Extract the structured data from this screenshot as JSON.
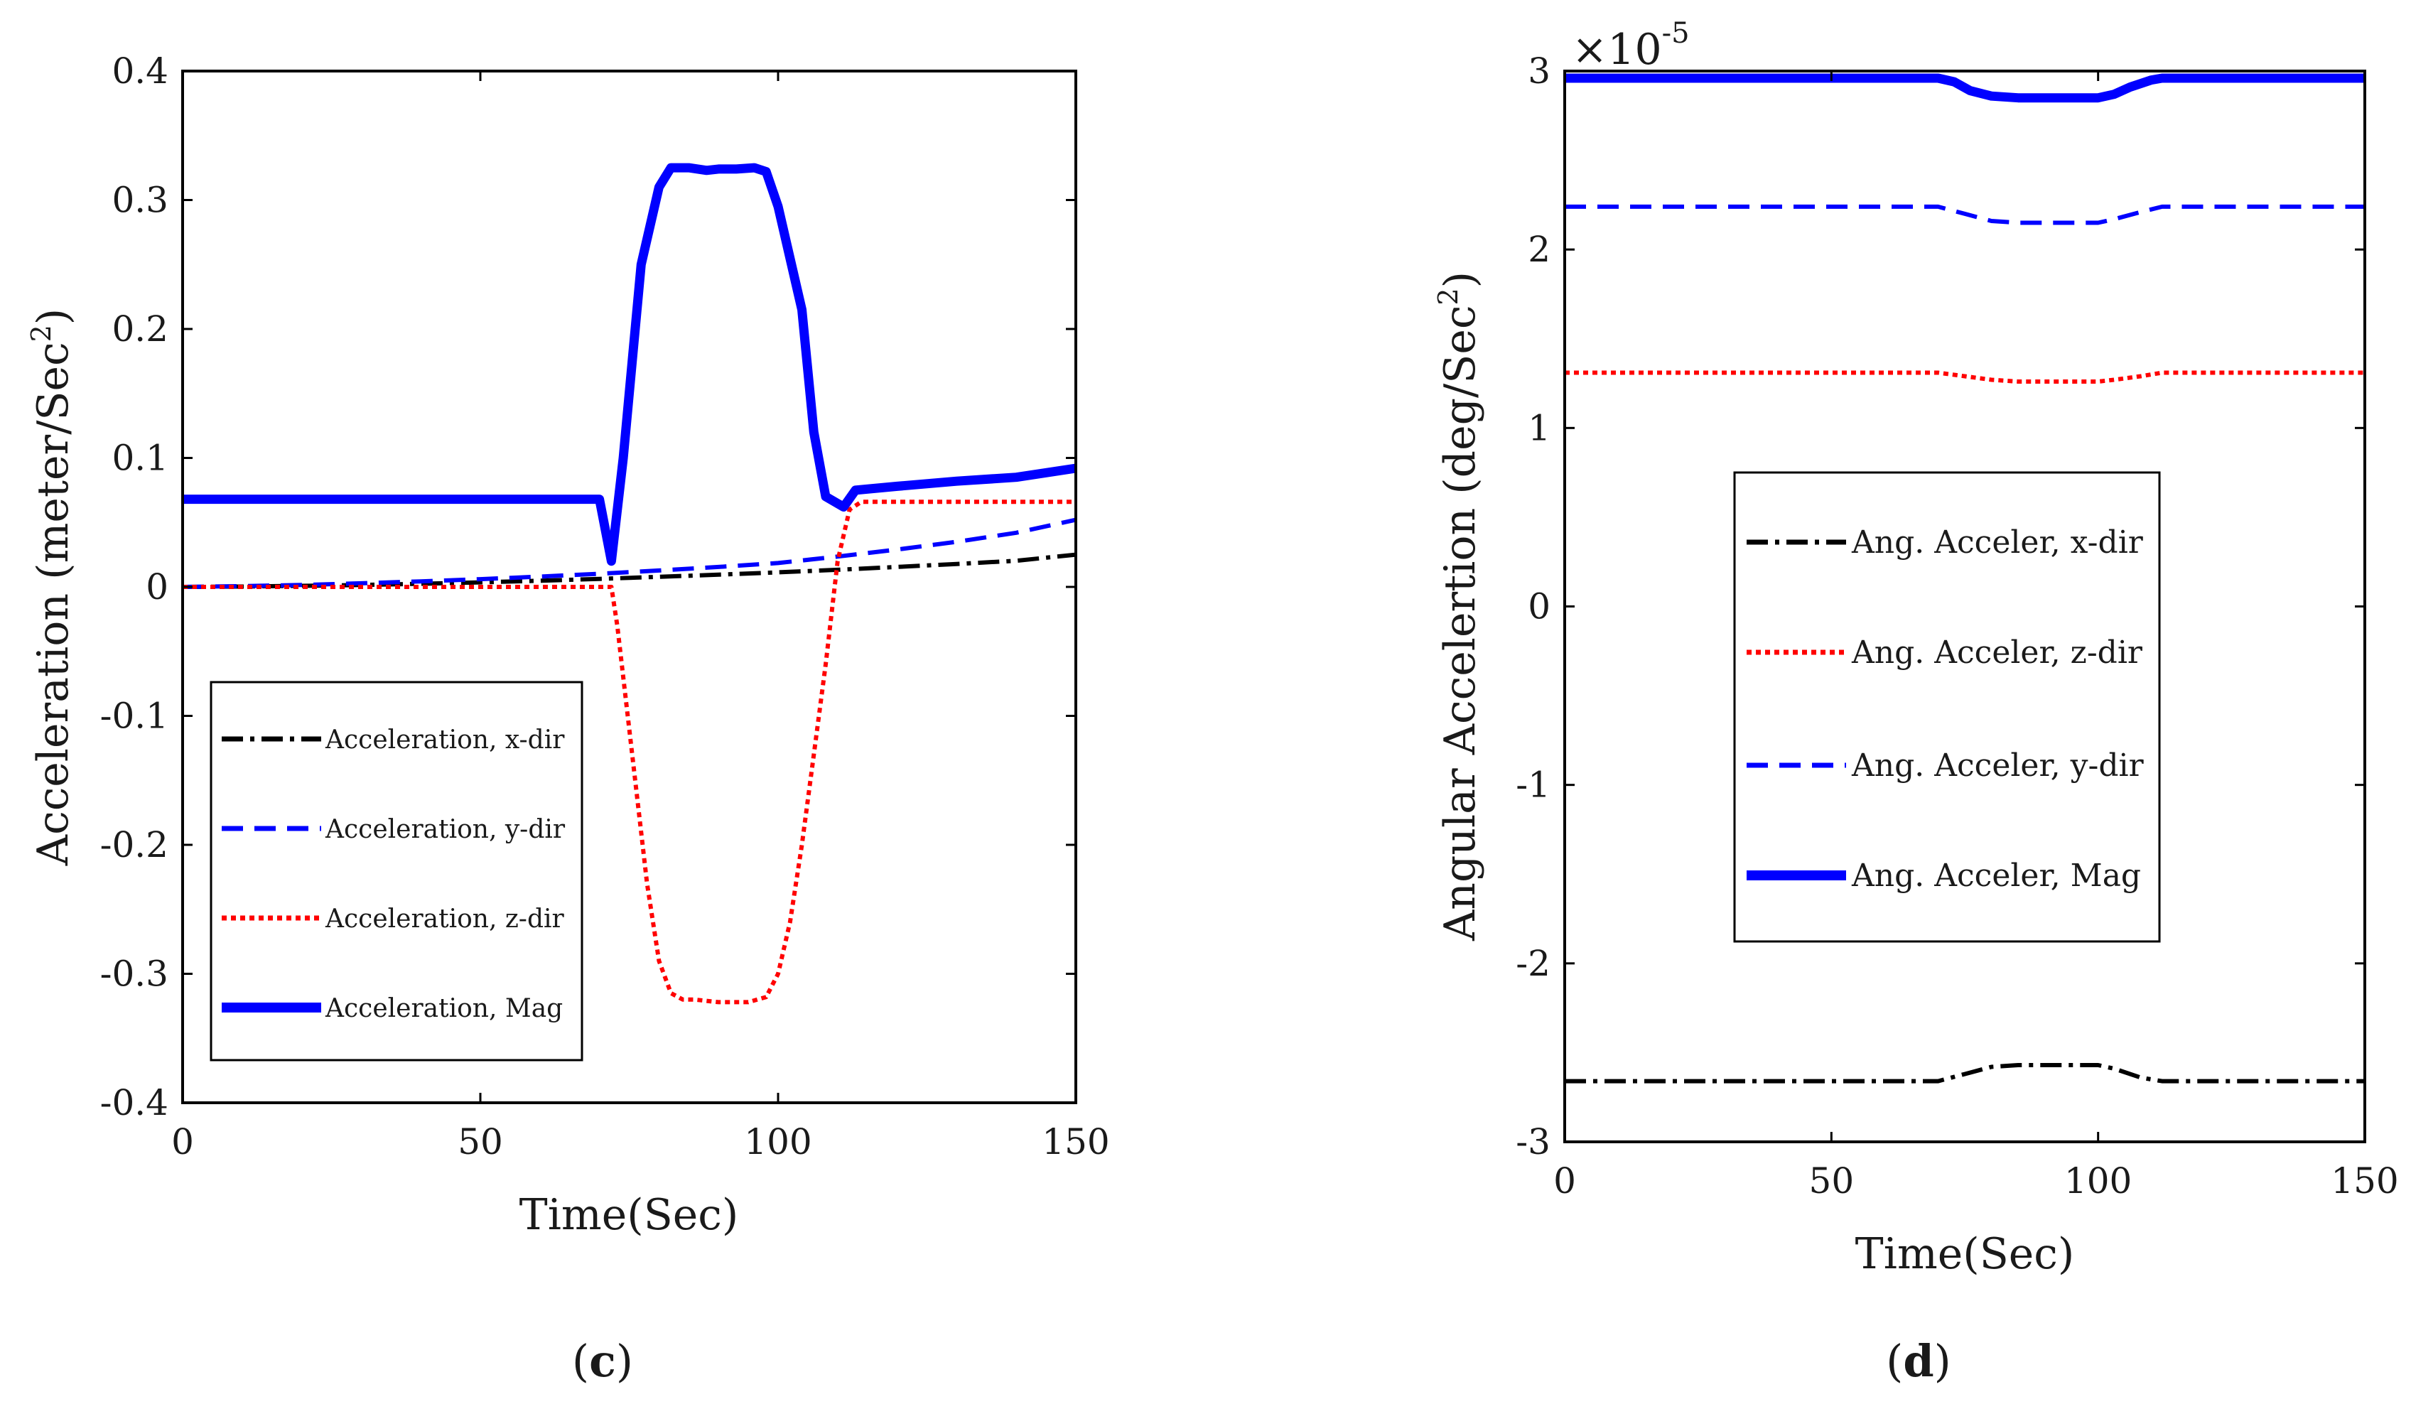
{
  "chart_data": [
    {
      "type": "line",
      "panel_label": "(c)",
      "xlabel": "Time(Sec)",
      "ylabel": "Acceleration (meter/Sec",
      "ylabel_sup": "2",
      "ylabel_tail": ")",
      "xlim": [
        0,
        150
      ],
      "ylim": [
        -0.4,
        0.4
      ],
      "xticks": [
        0,
        50,
        100,
        150
      ],
      "xtick_labels": [
        "0",
        "50",
        "100",
        "150"
      ],
      "yticks": [
        -0.4,
        -0.3,
        -0.2,
        -0.1,
        0,
        0.1,
        0.2,
        0.3,
        0.4
      ],
      "ytick_labels": [
        "-0.4",
        "-0.3",
        "-0.2",
        "-0.1",
        "0",
        "0.1",
        "0.2",
        "0.3",
        "0.4"
      ],
      "grid": false,
      "legend_position": "lower-left",
      "series": [
        {
          "name": "Acceleration, x-dir",
          "color": "#000000",
          "style": "dashdot",
          "x": [
            0,
            10,
            20,
            30,
            40,
            50,
            60,
            70,
            80,
            90,
            100,
            110,
            120,
            130,
            140,
            150
          ],
          "y": [
            0,
            0.0003,
            0.0008,
            0.0015,
            0.0024,
            0.0035,
            0.0048,
            0.0062,
            0.0078,
            0.0095,
            0.0113,
            0.0133,
            0.0155,
            0.0178,
            0.0203,
            0.025
          ]
        },
        {
          "name": "Acceleration, y-dir",
          "color": "#0000ff",
          "style": "dashed",
          "x": [
            0,
            10,
            20,
            30,
            40,
            50,
            60,
            70,
            80,
            90,
            100,
            110,
            120,
            130,
            140,
            150
          ],
          "y": [
            0,
            0.0006,
            0.0015,
            0.0028,
            0.0043,
            0.006,
            0.008,
            0.0102,
            0.0127,
            0.0155,
            0.0185,
            0.0235,
            0.029,
            0.035,
            0.042,
            0.052
          ]
        },
        {
          "name": "Acceleration, z-dir",
          "color": "#ff0000",
          "style": "dotted",
          "x": [
            0,
            72,
            73,
            74,
            75,
            76,
            78,
            80,
            82,
            84,
            86,
            90,
            95,
            98,
            100,
            102,
            104,
            106,
            108,
            110,
            112,
            114,
            150
          ],
          "y": [
            0,
            0,
            -0.03,
            -0.07,
            -0.11,
            -0.15,
            -0.23,
            -0.29,
            -0.315,
            -0.32,
            -0.32,
            -0.322,
            -0.322,
            -0.318,
            -0.3,
            -0.26,
            -0.2,
            -0.13,
            -0.06,
            0.02,
            0.06,
            0.066,
            0.066
          ]
        },
        {
          "name": "Acceleration, Mag",
          "color": "#0000ff",
          "style": "solid-thick",
          "x": [
            0,
            70,
            72,
            74,
            77,
            80,
            82,
            85,
            88,
            90,
            93,
            96,
            98,
            100,
            104,
            106,
            108,
            111,
            113,
            120,
            130,
            140,
            150
          ],
          "y": [
            0.068,
            0.068,
            0.02,
            0.1,
            0.25,
            0.31,
            0.325,
            0.325,
            0.323,
            0.324,
            0.324,
            0.325,
            0.322,
            0.295,
            0.215,
            0.12,
            0.07,
            0.062,
            0.075,
            0.078,
            0.082,
            0.085,
            0.092
          ]
        }
      ]
    },
    {
      "type": "line",
      "panel_label": "(d)",
      "xlabel": "Time(Sec)",
      "ylabel": "Angular Accelertion (deg/Sec",
      "ylabel_sup": "2",
      "ylabel_tail": ")",
      "scale_note": "×10",
      "scale_exponent": "-5",
      "xlim": [
        0,
        150
      ],
      "ylim": [
        -3,
        3
      ],
      "xticks": [
        0,
        50,
        100,
        150
      ],
      "xtick_labels": [
        "0",
        "50",
        "100",
        "150"
      ],
      "yticks": [
        -3,
        -2,
        -1,
        0,
        1,
        2,
        3
      ],
      "ytick_labels": [
        "-3",
        "-2",
        "-1",
        "0",
        "1",
        "2",
        "3"
      ],
      "grid": false,
      "legend_position": "center-left",
      "series": [
        {
          "name": "Ang. Acceler, x-dir",
          "color": "#000000",
          "style": "dashdot",
          "x": [
            0,
            70,
            75,
            80,
            85,
            90,
            95,
            100,
            103,
            108,
            112,
            150
          ],
          "y": [
            -2.66,
            -2.66,
            -2.62,
            -2.58,
            -2.57,
            -2.57,
            -2.57,
            -2.57,
            -2.59,
            -2.64,
            -2.66,
            -2.66
          ]
        },
        {
          "name": "Ang. Acceler, z-dir",
          "color": "#ff0000",
          "style": "dotted",
          "x": [
            0,
            70,
            75,
            80,
            85,
            90,
            95,
            100,
            103,
            108,
            112,
            150
          ],
          "y": [
            1.31,
            1.31,
            1.29,
            1.27,
            1.26,
            1.26,
            1.26,
            1.26,
            1.27,
            1.29,
            1.31,
            1.31
          ]
        },
        {
          "name": "Ang. Acceler, y-dir",
          "color": "#0000ff",
          "style": "dashed",
          "x": [
            0,
            70,
            75,
            80,
            85,
            90,
            95,
            100,
            103,
            108,
            112,
            150
          ],
          "y": [
            2.24,
            2.24,
            2.2,
            2.16,
            2.15,
            2.15,
            2.15,
            2.15,
            2.17,
            2.21,
            2.24,
            2.24
          ]
        },
        {
          "name": "Ang. Acceler, Mag",
          "color": "#0000ff",
          "style": "solid-thick",
          "x": [
            0,
            70,
            73,
            76,
            80,
            85,
            90,
            95,
            100,
            103,
            106,
            110,
            112,
            150
          ],
          "y": [
            2.96,
            2.96,
            2.94,
            2.89,
            2.86,
            2.85,
            2.85,
            2.85,
            2.85,
            2.87,
            2.91,
            2.95,
            2.96,
            2.96
          ]
        }
      ]
    }
  ]
}
